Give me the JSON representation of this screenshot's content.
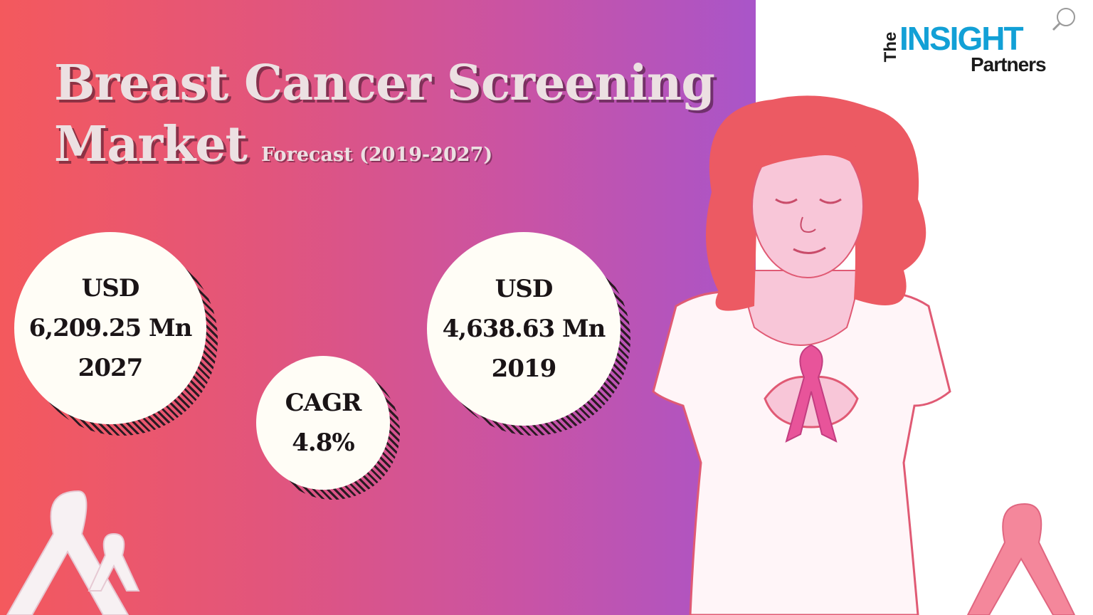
{
  "title": {
    "line1": "Breast Cancer Screening",
    "line2": "Market",
    "subtitle": "Forecast (2019-2027)"
  },
  "stats": {
    "value_2027": {
      "line1": "USD",
      "line2": "6,209.25 Mn",
      "line3": "2027"
    },
    "cagr": {
      "line1": "CAGR",
      "line2": "4.8%"
    },
    "value_2019": {
      "line1": "USD",
      "line2": "4,638.63 Mn",
      "line3": "2019"
    }
  },
  "logo": {
    "the": "The",
    "insight": "INSIGHT",
    "partners": "Partners"
  },
  "colors": {
    "gradient_start": "#f4595d",
    "gradient_end": "#a955c9",
    "bubble_fill": "#fffdf6",
    "logo_blue": "#12a0d6",
    "hair": "#ec5a63",
    "skin": "#f8c6d8",
    "ribbon_pink": "#e8549a"
  },
  "illustration": {
    "figure": "woman-holding-pink-ribbon",
    "ribbons": [
      "awareness-ribbon-white",
      "awareness-ribbon-pink"
    ]
  }
}
